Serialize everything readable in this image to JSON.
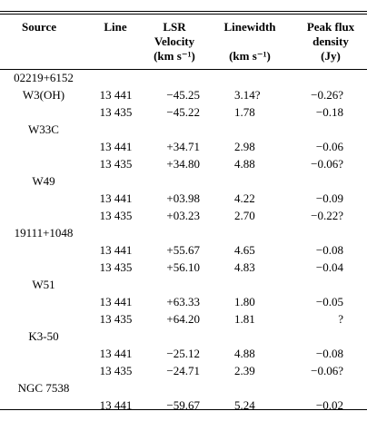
{
  "header": {
    "source": "Source",
    "line": "Line",
    "lsr_1": "LSR",
    "lsr_2": "Velocity",
    "lsr_3": "(km s⁻¹)",
    "width_1": "Linewidth",
    "width_3": "(km s⁻¹)",
    "peak_1": "Peak flux",
    "peak_2": "density",
    "peak_3": "(Jy)"
  },
  "rows": [
    {
      "source": "02219+6152",
      "line": "",
      "velocity": "",
      "linewidth": "",
      "peak": ""
    },
    {
      "source": "W3(OH)",
      "line": "13 441",
      "velocity": "−45.25",
      "linewidth": "3.14?",
      "peak": "−0.26?"
    },
    {
      "source": "",
      "line": "13 435",
      "velocity": "−45.22",
      "linewidth": "1.78",
      "peak": "−0.18"
    },
    {
      "source": "W33C",
      "line": "",
      "velocity": "",
      "linewidth": "",
      "peak": ""
    },
    {
      "source": "",
      "line": "13 441",
      "velocity": "+34.71",
      "linewidth": "2.98",
      "peak": "−0.06"
    },
    {
      "source": "",
      "line": "13 435",
      "velocity": "+34.80",
      "linewidth": "4.88",
      "peak": "−0.06?"
    },
    {
      "source": "W49",
      "line": "",
      "velocity": "",
      "linewidth": "",
      "peak": ""
    },
    {
      "source": "",
      "line": "13 441",
      "velocity": "+03.98",
      "linewidth": "4.22",
      "peak": "−0.09"
    },
    {
      "source": "",
      "line": "13 435",
      "velocity": "+03.23",
      "linewidth": "2.70",
      "peak": "−0.22?"
    },
    {
      "source": "19111+1048",
      "line": "",
      "velocity": "",
      "linewidth": "",
      "peak": ""
    },
    {
      "source": "",
      "line": "13 441",
      "velocity": "+55.67",
      "linewidth": "4.65",
      "peak": "−0.08"
    },
    {
      "source": "",
      "line": "13 435",
      "velocity": "+56.10",
      "linewidth": "4.83",
      "peak": "−0.04"
    },
    {
      "source": "W51",
      "line": "",
      "velocity": "",
      "linewidth": "",
      "peak": ""
    },
    {
      "source": "",
      "line": "13 441",
      "velocity": "+63.33",
      "linewidth": "1.80",
      "peak": "−0.05"
    },
    {
      "source": "",
      "line": "13 435",
      "velocity": "+64.20",
      "linewidth": "1.81",
      "peak": "?"
    },
    {
      "source": "K3-50",
      "line": "",
      "velocity": "",
      "linewidth": "",
      "peak": ""
    },
    {
      "source": "",
      "line": "13 441",
      "velocity": "−25.12",
      "linewidth": "4.88",
      "peak": "−0.08"
    },
    {
      "source": "",
      "line": "13 435",
      "velocity": "−24.71",
      "linewidth": "2.39",
      "peak": "−0.06?"
    },
    {
      "source": "NGC 7538",
      "line": "",
      "velocity": "",
      "linewidth": "",
      "peak": ""
    },
    {
      "source": "",
      "line": "13 441",
      "velocity": "−59.67",
      "linewidth": "5.24",
      "peak": "−0.02"
    }
  ]
}
